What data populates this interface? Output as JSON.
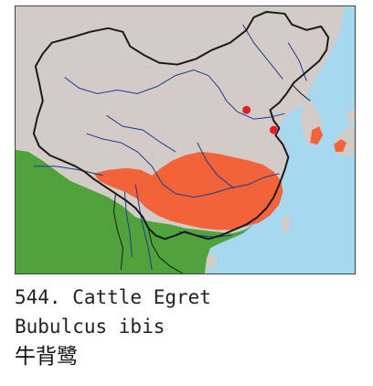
{
  "caption": {
    "species_line": "544. Cattle Egret",
    "scientific_name": "Bubulcus ibis",
    "chinese_name": "牛背鹭"
  },
  "colors": {
    "sea": "#a6d8f0",
    "land": "#d2cbc7",
    "breeding_range": "#f2633a",
    "resident_range": "#4fa23c",
    "record_dot": "#e01f26",
    "border": "#1a1a1a",
    "river": "#1f3a8f"
  }
}
